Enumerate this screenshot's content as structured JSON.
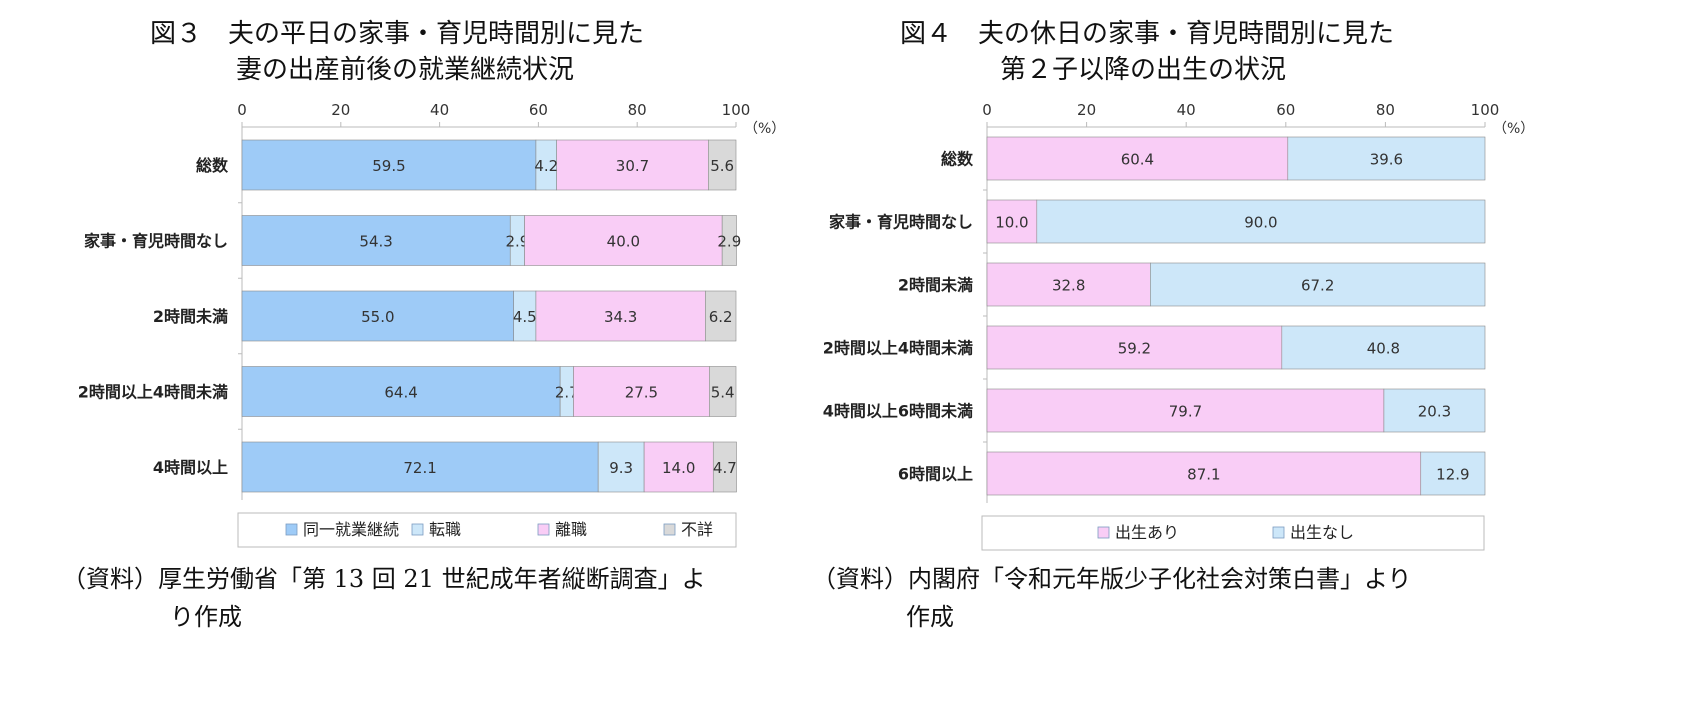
{
  "left": {
    "title_line1": "図３　夫の平日の家事・育児時間別に見た",
    "title_line2": "妻の出産前後の就業継続状況",
    "source_line1": "（資料）厚生労働省「第 13 回 21 世紀成年者縦断調査」よ",
    "source_line2": "り作成",
    "unit": "（%）",
    "legend": [
      "同一就業継続",
      "転職",
      "離職",
      "不詳"
    ],
    "colors": {
      "同一就業継続": "#9ecbf7",
      "転職": "#cde7f9",
      "離職": "#f9cdf6",
      "不詳": "#d9d9d9"
    }
  },
  "right": {
    "title_line1": "図４　夫の休日の家事・育児時間別に見た",
    "title_line2": "第２子以降の出生の状況",
    "source_line1": "（資料）内閣府「令和元年版少子化社会対策白書」より",
    "source_line2": "作成",
    "unit": "（%）",
    "legend": [
      "出生あり",
      "出生なし"
    ],
    "colors": {
      "出生あり": "#f9cdf6",
      "出生なし": "#cde7f9"
    }
  },
  "chart_data": [
    {
      "type": "bar",
      "orientation": "horizontal",
      "stacked": true,
      "title": "図３　夫の平日の家事・育児時間別に見た妻の出産前後の就業継続状況",
      "categories": [
        "総数",
        "家事・育児時間なし",
        "2時間未満",
        "2時間以上4時間未満",
        "4時間以上"
      ],
      "series": [
        {
          "name": "同一就業継続",
          "values": [
            59.5,
            54.3,
            55.0,
            64.4,
            72.1
          ]
        },
        {
          "name": "転職",
          "values": [
            4.2,
            2.9,
            4.5,
            2.7,
            9.3
          ]
        },
        {
          "name": "離職",
          "values": [
            30.7,
            40.0,
            34.3,
            27.5,
            14.0
          ]
        },
        {
          "name": "不詳",
          "values": [
            5.6,
            2.9,
            6.2,
            5.4,
            4.7
          ]
        }
      ],
      "xlim": [
        0,
        100
      ],
      "xticks": [
        0,
        20,
        40,
        60,
        80,
        100
      ],
      "xlabel": "（%）",
      "grid": false,
      "legend_position": "bottom"
    },
    {
      "type": "bar",
      "orientation": "horizontal",
      "stacked": true,
      "title": "図４　夫の休日の家事・育児時間別に見た第２子以降の出生の状況",
      "categories": [
        "総数",
        "家事・育児時間なし",
        "2時間未満",
        "2時間以上4時間未満",
        "4時間以上6時間未満",
        "6時間以上"
      ],
      "series": [
        {
          "name": "出生あり",
          "values": [
            60.4,
            10.0,
            32.8,
            59.2,
            79.7,
            87.1
          ]
        },
        {
          "name": "出生なし",
          "values": [
            39.6,
            90.0,
            67.2,
            40.8,
            20.3,
            12.9
          ]
        }
      ],
      "xlim": [
        0,
        100
      ],
      "xticks": [
        0,
        20,
        40,
        60,
        80,
        100
      ],
      "xlabel": "（%）",
      "grid": false,
      "legend_position": "bottom"
    }
  ]
}
